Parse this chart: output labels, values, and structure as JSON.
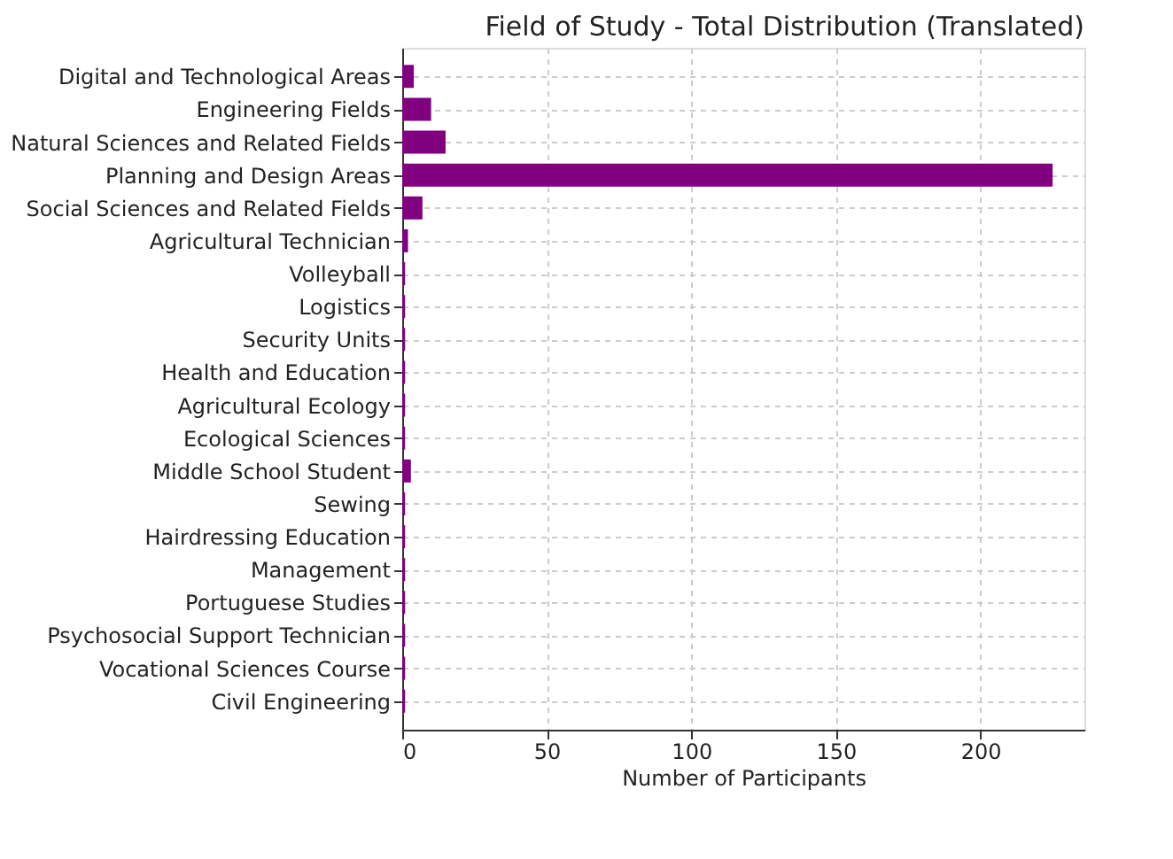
{
  "chart_data": {
    "type": "bar",
    "orientation": "horizontal",
    "title": "Field of Study - Total Distribution (Translated)",
    "xlabel": "Number of Participants",
    "categories": [
      "Digital and Technological Areas",
      "Engineering Fields",
      "Natural Sciences and Related Fields",
      "Planning and Design Areas",
      "Social Sciences and Related Fields",
      "Agricultural Technician",
      "Volleyball",
      "Logistics",
      "Security Units",
      "Health and Education",
      "Agricultural Ecology",
      "Ecological Sciences",
      "Middle School Student",
      "Sewing",
      "Hairdressing Education",
      "Management",
      "Portuguese Studies",
      "Psychosocial Support Technician",
      "Vocational Sciences Course",
      "Civil Engineering"
    ],
    "values": [
      4,
      10,
      15,
      225,
      7,
      2,
      1,
      1,
      1,
      1,
      1,
      1,
      3,
      1,
      1,
      1,
      1,
      1,
      1,
      1
    ],
    "color": "#800080",
    "xlim": [
      0,
      236
    ],
    "xticks": [
      0,
      50,
      100,
      150,
      200
    ],
    "grid": true
  }
}
